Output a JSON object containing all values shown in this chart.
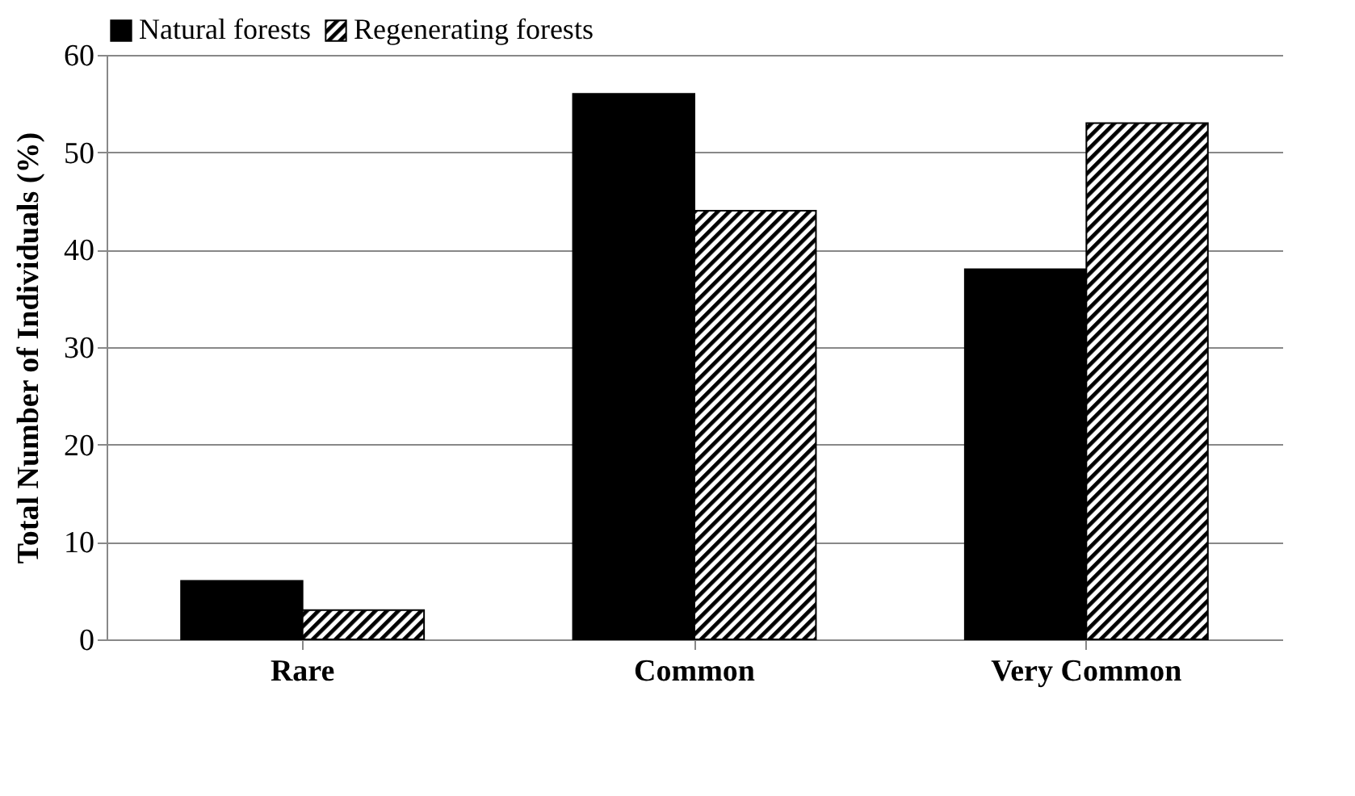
{
  "chart_data": {
    "type": "bar",
    "ylabel": "Total Number of Individuals (%)",
    "categories": [
      "Rare",
      "Common",
      "Very Common"
    ],
    "series": [
      {
        "name": "Natural forests",
        "color": "#000000",
        "values": [
          6,
          56,
          38
        ]
      },
      {
        "name": "Regenerating forests",
        "color": "#000000",
        "values": [
          3,
          44,
          53
        ]
      }
    ],
    "ylim": [
      0,
      60
    ],
    "yticks": [
      0,
      10,
      20,
      30,
      40,
      50,
      60
    ],
    "grid": "y",
    "legend": "top"
  }
}
